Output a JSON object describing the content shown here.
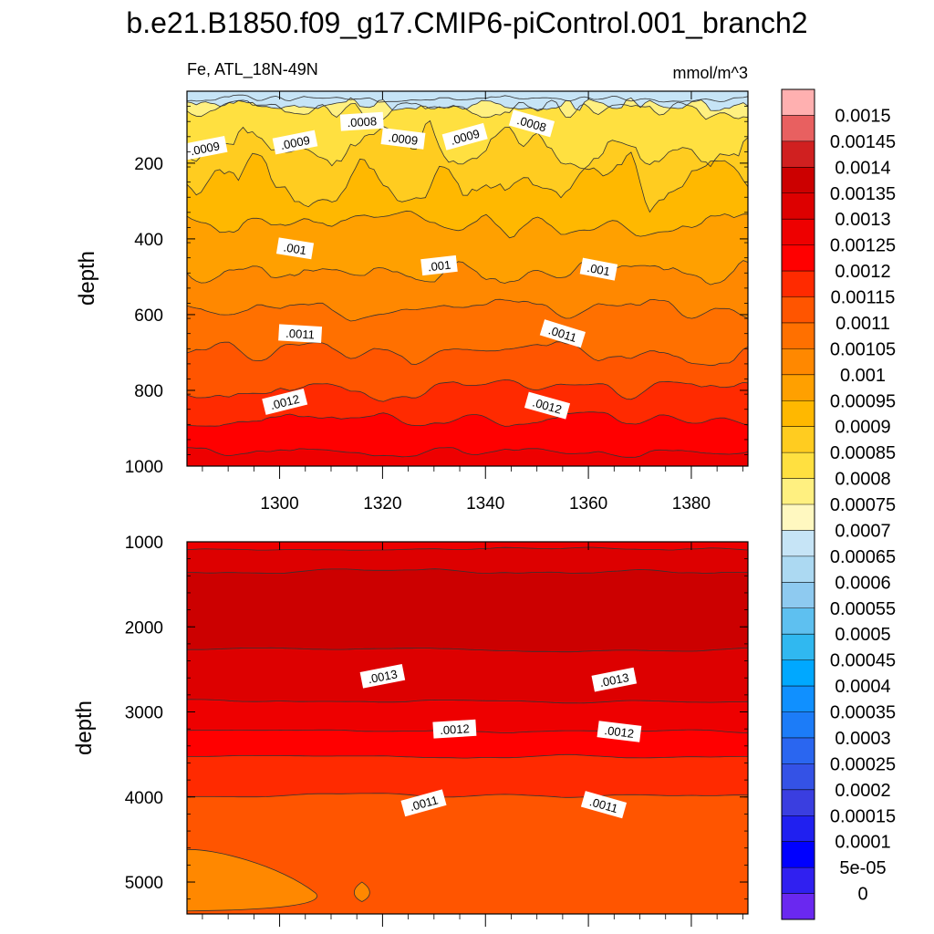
{
  "chart_data": {
    "type": "contour",
    "title": "b.e21.B1850.f09_g17.CMIP6-piControl.001_branch2",
    "variable_label": "Fe, ATL_18N-49N",
    "units": "mmol/m^3",
    "x_axis": {
      "label": "",
      "range": [
        1282,
        1391
      ],
      "ticks": [
        1300,
        1320,
        1340,
        1360,
        1380
      ],
      "tick_labels": [
        "1300",
        "1320",
        "1340",
        "1360",
        "1380"
      ]
    },
    "panels": [
      {
        "name": "upper",
        "ylabel": "depth",
        "y_range": [
          10,
          1000
        ],
        "y_ticks": [
          200,
          400,
          600,
          800,
          1000
        ],
        "y_tick_labels": [
          "200",
          "400",
          "600",
          "800",
          "1000"
        ],
        "contour_labels": [
          {
            "text": ".0009",
            "x": 1285.5,
            "y": 160
          },
          {
            "text": ".0009",
            "x": 1303,
            "y": 145
          },
          {
            "text": ".0008",
            "x": 1316,
            "y": 90
          },
          {
            "text": ".0009",
            "x": 1324,
            "y": 135
          },
          {
            "text": ".0009",
            "x": 1336,
            "y": 130
          },
          {
            "text": ".0008",
            "x": 1349,
            "y": 95
          },
          {
            "text": ".001",
            "x": 1303,
            "y": 425
          },
          {
            "text": ".001",
            "x": 1331,
            "y": 470
          },
          {
            "text": ".001",
            "x": 1362,
            "y": 480
          },
          {
            "text": ".0011",
            "x": 1304,
            "y": 650
          },
          {
            "text": ".0011",
            "x": 1355,
            "y": 650
          },
          {
            "text": ".0012",
            "x": 1301,
            "y": 830
          },
          {
            "text": ".0012",
            "x": 1352,
            "y": 840
          }
        ]
      },
      {
        "name": "lower",
        "ylabel": "depth",
        "y_range": [
          1000,
          5375
        ],
        "y_ticks": [
          1000,
          2000,
          3000,
          4000,
          5000
        ],
        "y_tick_labels": [
          "1000",
          "2000",
          "3000",
          "4000",
          "5000"
        ],
        "contour_labels": [
          {
            "text": ".0013",
            "x": 1320,
            "y": 2580
          },
          {
            "text": ".0013",
            "x": 1365,
            "y": 2620
          },
          {
            "text": ".0012",
            "x": 1334,
            "y": 3200
          },
          {
            "text": ".0012",
            "x": 1366,
            "y": 3230
          },
          {
            "text": ".0011",
            "x": 1328,
            "y": 4070
          },
          {
            "text": ".0011",
            "x": 1363,
            "y": 4090
          }
        ]
      }
    ],
    "colorbar": {
      "labels": [
        "0.0015",
        "0.00145",
        "0.0014",
        "0.00135",
        "0.0013",
        "0.00125",
        "0.0012",
        "0.00115",
        "0.0011",
        "0.00105",
        "0.001",
        "0.00095",
        "0.0009",
        "0.00085",
        "0.0008",
        "0.00075",
        "0.0007",
        "0.00065",
        "0.0006",
        "0.00055",
        "0.0005",
        "0.00045",
        "0.0004",
        "0.00035",
        "0.0003",
        "0.00025",
        "0.0002",
        "0.00015",
        "0.0001",
        "5e-05",
        "0"
      ],
      "colors": [
        "#ffb0b0",
        "#e86060",
        "#d02020",
        "#cc0000",
        "#dd0000",
        "#ee0000",
        "#ff0000",
        "#ff2a00",
        "#ff5500",
        "#ff7000",
        "#ff8800",
        "#ffa000",
        "#ffb800",
        "#ffcc20",
        "#ffe040",
        "#fff080",
        "#fff8c0",
        "#c6e4f6",
        "#acd9f2",
        "#8ecaf0",
        "#5ec0f0",
        "#30b8f0",
        "#00a8ff",
        "#1090ff",
        "#1c7cf8",
        "#2a66f0",
        "#3452e6",
        "#3a3ee0",
        "#2020f0",
        "#0000ff",
        "#3020f0",
        "#6a28f0"
      ]
    },
    "contour_levels": [
      0.00065,
      0.0007,
      0.00075,
      0.0008,
      0.00085,
      0.0009,
      0.00095,
      0.001,
      0.00105,
      0.0011,
      0.00115,
      0.0012,
      0.00125,
      0.0013,
      0.00135,
      0.0014
    ]
  }
}
